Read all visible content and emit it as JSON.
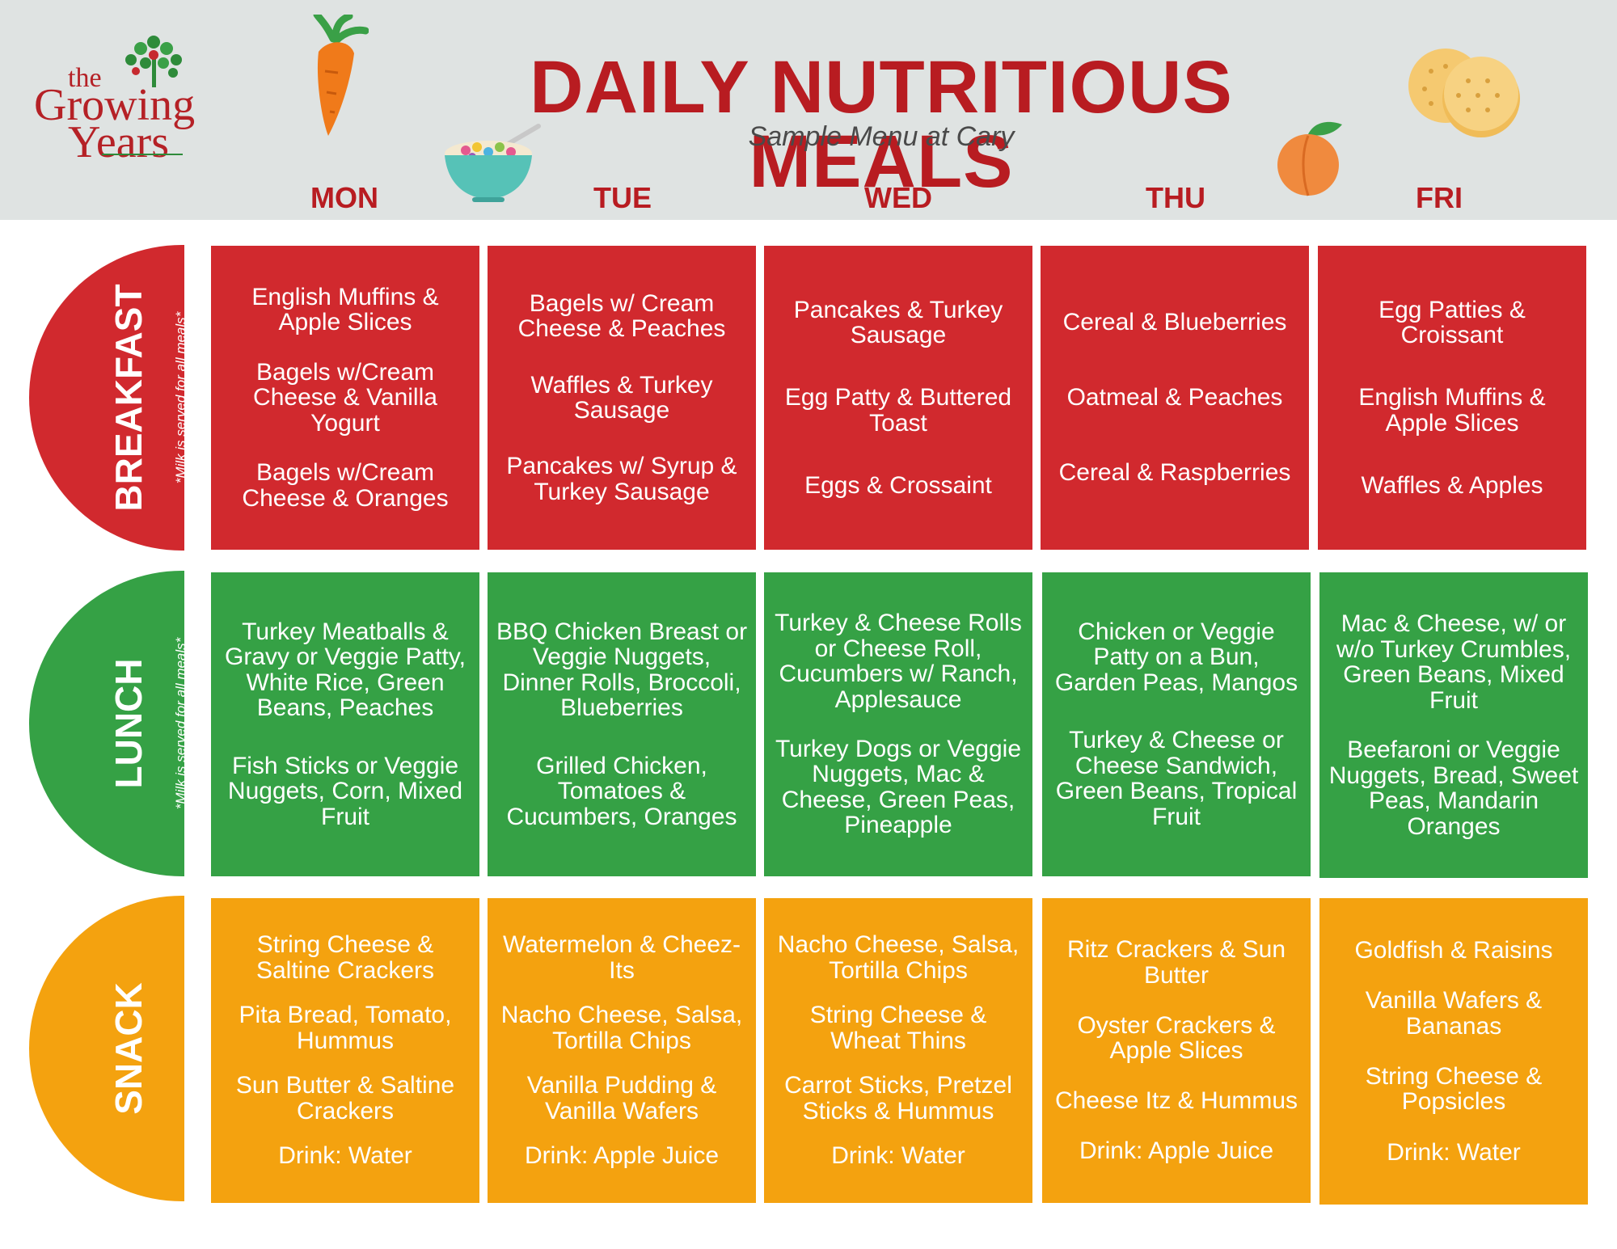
{
  "logo": {
    "the": "the",
    "growing": "Growing",
    "years": "Years"
  },
  "title": "DAILY NUTRITIOUS MEALS",
  "subtitle": "Sample Menu at Cary",
  "days": [
    "MON",
    "TUE",
    "WED",
    "THU",
    "FRI"
  ],
  "meals": {
    "breakfast": {
      "label": "BREAKFAST",
      "note": "*Milk is served for all meals*",
      "cells": [
        [
          "English Muffins & Apple Slices",
          "Bagels w/Cream Cheese & Vanilla Yogurt",
          "Bagels w/Cream Cheese & Oranges"
        ],
        [
          "Bagels w/ Cream Cheese & Peaches",
          "Waffles & Turkey Sausage",
          "Pancakes w/ Syrup & Turkey Sausage"
        ],
        [
          "Pancakes & Turkey Sausage",
          "Egg Patty & Buttered Toast",
          "Eggs & Crossaint"
        ],
        [
          "Cereal & Blueberries",
          "Oatmeal & Peaches",
          "Cereal & Raspberries"
        ],
        [
          "Egg Patties & Croissant",
          "English Muffins & Apple Slices",
          "Waffles & Apples"
        ]
      ]
    },
    "lunch": {
      "label": "LUNCH",
      "note": "*Milk is served for all meals*",
      "cells": [
        [
          "Turkey Meatballs & Gravy or Veggie Patty, White Rice, Green Beans, Peaches",
          "Fish Sticks or Veggie Nuggets, Corn, Mixed Fruit"
        ],
        [
          "BBQ Chicken Breast or Veggie Nuggets, Dinner Rolls, Broccoli, Blueberries",
          "Grilled Chicken, Tomatoes & Cucumbers, Oranges"
        ],
        [
          "Turkey & Cheese Rolls or Cheese Roll, Cucumbers w/ Ranch, Applesauce",
          "Turkey Dogs or Veggie Nuggets, Mac & Cheese, Green Peas, Pineapple"
        ],
        [
          "Chicken or Veggie Patty on a Bun, Garden Peas, Mangos",
          "Turkey & Cheese or Cheese Sandwich, Green Beans, Tropical Fruit"
        ],
        [
          "Mac & Cheese, w/ or w/o Turkey Crumbles, Green Beans, Mixed Fruit",
          "Beefaroni or Veggie Nuggets, Bread, Sweet Peas, Mandarin Oranges"
        ]
      ]
    },
    "snack": {
      "label": "SNACK",
      "cells": [
        [
          "String Cheese & Saltine Crackers",
          "Pita Bread, Tomato, Hummus",
          "Sun Butter & Saltine Crackers",
          "Drink: Water"
        ],
        [
          "Watermelon & Cheez-Its",
          "Nacho Cheese, Salsa, Tortilla Chips",
          "Vanilla Pudding & Vanilla Wafers",
          "Drink: Apple Juice"
        ],
        [
          "Nacho Cheese, Salsa, Tortilla Chips",
          "String Cheese & Wheat Thins",
          "Carrot Sticks, Pretzel Sticks & Hummus",
          "Drink: Water"
        ],
        [
          "Ritz Crackers  & Sun Butter",
          "Oyster Crackers & Apple Slices",
          "Cheese Itz & Hummus",
          "Drink: Apple Juice"
        ],
        [
          "Goldfish & Raisins",
          "Vanilla Wafers & Bananas",
          "String Cheese & Popsicles",
          "Drink: Water"
        ]
      ]
    }
  },
  "colors": {
    "breakfast": "#d1292e",
    "lunch": "#35a145",
    "snack": "#f4a20f",
    "title": "#b81c21"
  },
  "icons": [
    "tree-icon",
    "carrot-icon",
    "cereal-bowl-icon",
    "peach-icon",
    "crackers-icon"
  ]
}
